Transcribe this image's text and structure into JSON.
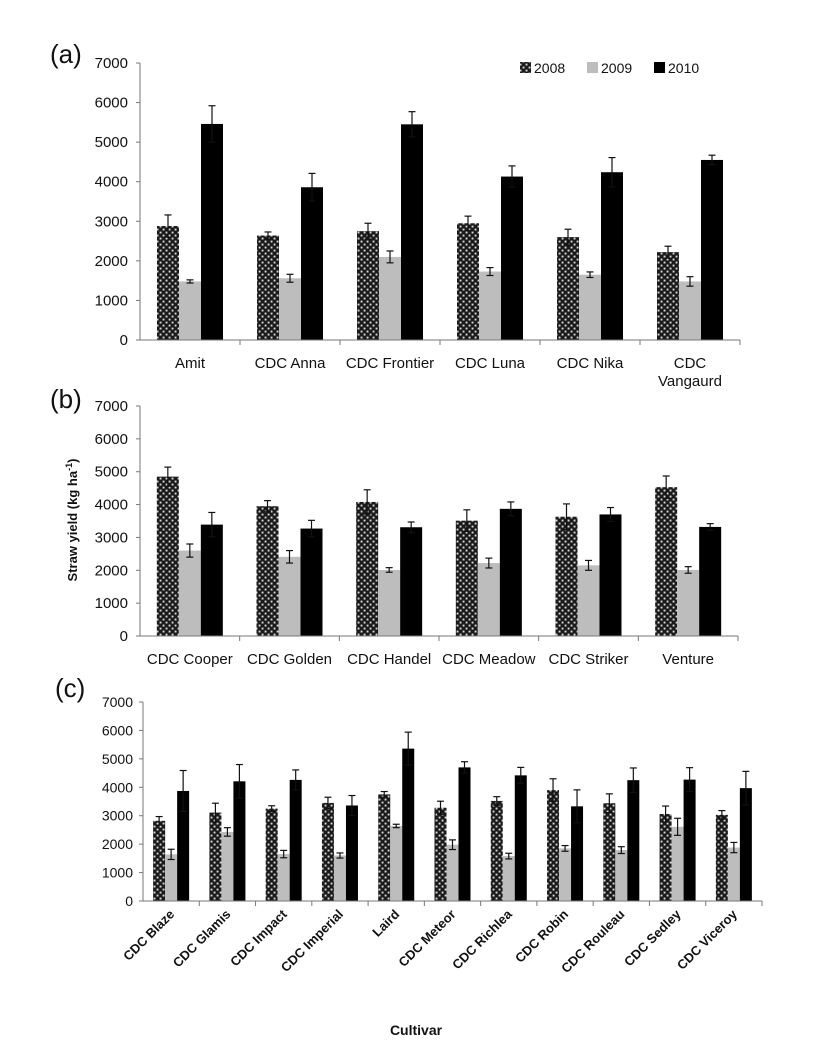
{
  "chart_data": [
    {
      "panel_label": "(a)",
      "type": "bar",
      "ylim": [
        0,
        7000
      ],
      "yticks": [
        "0",
        "1000",
        "2000",
        "3000",
        "4000",
        "5000",
        "6000",
        "7000"
      ],
      "legend": [
        "2008",
        "2009",
        "2010"
      ],
      "categories": [
        "Amit",
        "CDC Anna",
        "CDC Frontier",
        "CDC Luna",
        "CDC Nika",
        "CDC Vangaurd"
      ],
      "category_lines": [
        [
          "Amit"
        ],
        [
          "CDC Anna"
        ],
        [
          "CDC Frontier"
        ],
        [
          "CDC Luna"
        ],
        [
          "CDC Nika"
        ],
        [
          "CDC",
          "Vangaurd"
        ]
      ],
      "series": [
        {
          "name": "2008",
          "values": [
            2880,
            2640,
            2750,
            2950,
            2600,
            2220
          ],
          "errors": [
            280,
            90,
            200,
            180,
            200,
            150
          ]
        },
        {
          "name": "2009",
          "values": [
            1480,
            1560,
            2100,
            1730,
            1650,
            1480
          ],
          "errors": [
            40,
            100,
            150,
            100,
            70,
            120
          ]
        },
        {
          "name": "2010",
          "values": [
            5460,
            3860,
            5450,
            4130,
            4240,
            4550
          ],
          "errors": [
            460,
            350,
            320,
            270,
            370,
            120
          ]
        }
      ]
    },
    {
      "panel_label": "(b)",
      "type": "bar",
      "ylim": [
        0,
        7000
      ],
      "yticks": [
        "0",
        "1000",
        "2000",
        "3000",
        "4000",
        "5000",
        "6000",
        "7000"
      ],
      "ylabel": "Straw yield (kg ha-1)",
      "categories": [
        "CDC Cooper",
        "CDC Golden",
        "CDC Handel",
        "CDC Meadow",
        "CDC Striker",
        "Venture"
      ],
      "series": [
        {
          "name": "2008",
          "values": [
            4850,
            3950,
            4080,
            3510,
            3630,
            4530
          ],
          "errors": [
            290,
            170,
            370,
            330,
            390,
            340
          ]
        },
        {
          "name": "2009",
          "values": [
            2600,
            2410,
            2010,
            2220,
            2150,
            2010
          ],
          "errors": [
            200,
            190,
            70,
            150,
            150,
            100
          ]
        },
        {
          "name": "2010",
          "values": [
            3390,
            3270,
            3310,
            3870,
            3700,
            3320
          ],
          "errors": [
            370,
            250,
            160,
            210,
            210,
            100
          ]
        }
      ]
    },
    {
      "panel_label": "(c)",
      "type": "bar",
      "ylim": [
        0,
        7000
      ],
      "yticks": [
        "0",
        "1000",
        "2000",
        "3000",
        "4000",
        "5000",
        "6000",
        "7000"
      ],
      "xlabel": "Cultivar",
      "categories": [
        "CDC Blaze",
        "CDC Glamis",
        "CDC Impact",
        "CDC Imperial",
        "Laird",
        "CDC Meteor",
        "CDC Richlea",
        "CDC Robin",
        "CDC Rouleau",
        "CDC Sedley",
        "CDC Viceroy"
      ],
      "series": [
        {
          "name": "2008",
          "values": [
            2820,
            3110,
            3250,
            3450,
            3750,
            3280,
            3520,
            3900,
            3440,
            3060,
            3030
          ],
          "errors": [
            150,
            330,
            100,
            200,
            100,
            230,
            150,
            400,
            330,
            280,
            150
          ],
          "errors_dummy": null
        },
        {
          "name": "2009",
          "values": [
            1640,
            2430,
            1650,
            1600,
            2640,
            1980,
            1580,
            1850,
            1790,
            2610,
            1880
          ],
          "errors": [
            180,
            150,
            130,
            90,
            60,
            170,
            100,
            100,
            120,
            300,
            180
          ]
        },
        {
          "name": "2010",
          "values": [
            3870,
            4210,
            4260,
            3360,
            5360,
            4700,
            4420,
            3330,
            4250,
            4270,
            3970
          ],
          "errors": [
            720,
            590,
            350,
            350,
            580,
            200,
            280,
            580,
            430,
            420,
            590
          ]
        }
      ]
    }
  ]
}
